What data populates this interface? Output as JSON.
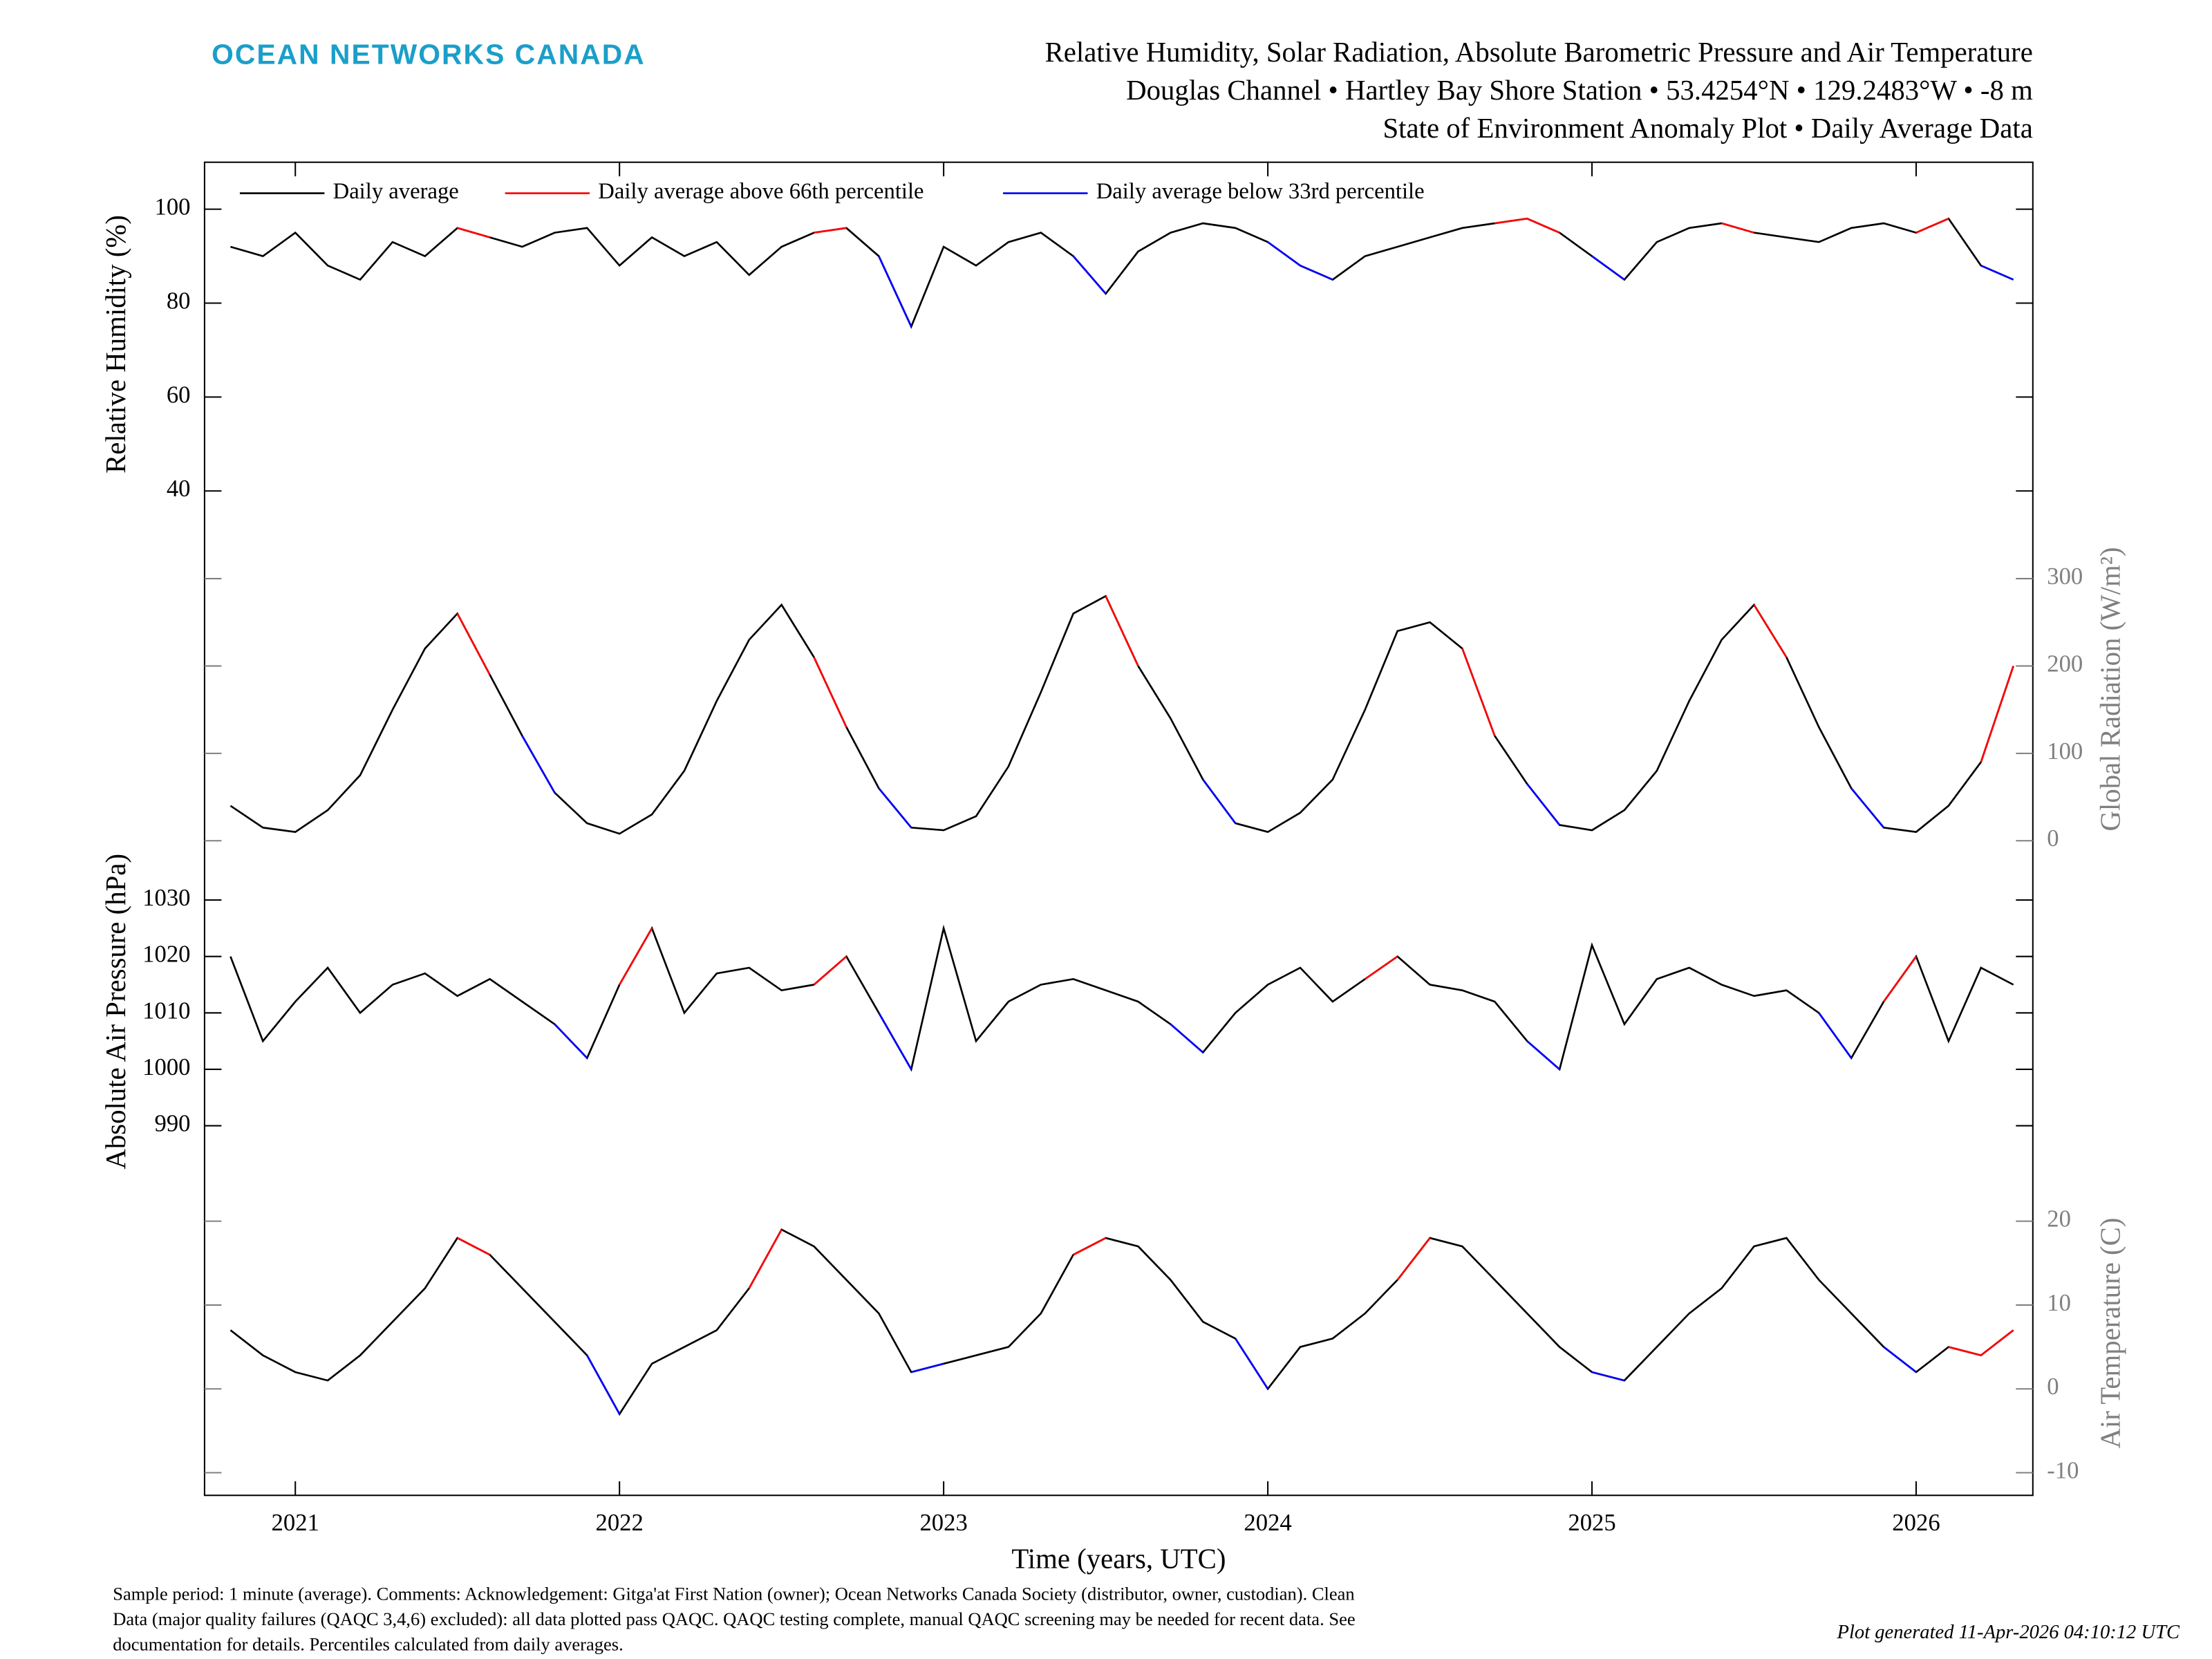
{
  "chart_data": {
    "type": "line",
    "logo": "OCEAN NETWORKS CANADA",
    "title": [
      "Relative Humidity, Solar Radiation, Absolute Barometric Pressure and Air Temperature",
      "Douglas Channel • Hartley Bay Shore Station • 53.4254°N • 129.2483°W • -8 m",
      "State of Environment Anomaly Plot • Daily Average Data"
    ],
    "xlabel": "Time (years, UTC)",
    "xlim": [
      2020.72,
      2026.36
    ],
    "xticks": [
      2021,
      2022,
      2023,
      2024,
      2025,
      2026
    ],
    "x": [
      2020.8,
      2020.9,
      2021.0,
      2021.1,
      2021.2,
      2021.3,
      2021.4,
      2021.5,
      2021.6,
      2021.7,
      2021.8,
      2021.9,
      2022.0,
      2022.1,
      2022.2,
      2022.3,
      2022.4,
      2022.5,
      2022.6,
      2022.7,
      2022.8,
      2022.9,
      2023.0,
      2023.1,
      2023.2,
      2023.3,
      2023.4,
      2023.5,
      2023.6,
      2023.7,
      2023.8,
      2023.9,
      2024.0,
      2024.1,
      2024.2,
      2024.3,
      2024.4,
      2024.5,
      2024.6,
      2024.7,
      2024.8,
      2024.9,
      2025.0,
      2025.1,
      2025.2,
      2025.3,
      2025.4,
      2025.5,
      2025.6,
      2025.7,
      2025.8,
      2025.9,
      2026.0,
      2026.1,
      2026.2,
      2026.3
    ],
    "legend": [
      {
        "name": "Daily average",
        "color": "#000000"
      },
      {
        "name": "Daily average above 66th percentile",
        "color": "#ff0000"
      },
      {
        "name": "Daily average below 33rd percentile",
        "color": "#0000ff"
      }
    ],
    "panels": [
      {
        "ylabel": "Relative Humidity (%)",
        "yaxis": "left",
        "ylim": [
          32.5,
          110
        ],
        "yticks": [
          40,
          60,
          80,
          100
        ],
        "series": [
          {
            "values": [
              92,
              90,
              95,
              88,
              85,
              93,
              90,
              96,
              94,
              92,
              95,
              96,
              88,
              94,
              90,
              93,
              86,
              92,
              95,
              96,
              90,
              75,
              92,
              88,
              93,
              95,
              90,
              82,
              91,
              95,
              97,
              96,
              93,
              88,
              85,
              90,
              92,
              94,
              96,
              97,
              98,
              95,
              90,
              85,
              93,
              96,
              97,
              95,
              94,
              93,
              96,
              97,
              95,
              98,
              88,
              85
            ]
          },
          {
            "values": [
              null,
              null,
              null,
              null,
              null,
              null,
              null,
              96,
              94,
              null,
              null,
              null,
              null,
              null,
              null,
              null,
              null,
              null,
              95,
              96,
              null,
              null,
              null,
              null,
              null,
              null,
              null,
              null,
              null,
              null,
              null,
              null,
              null,
              null,
              null,
              null,
              null,
              null,
              null,
              97,
              98,
              95,
              null,
              null,
              null,
              null,
              97,
              95,
              null,
              null,
              null,
              null,
              95,
              98,
              null,
              null
            ]
          },
          {
            "values": [
              null,
              null,
              null,
              null,
              null,
              null,
              null,
              null,
              null,
              null,
              null,
              null,
              null,
              null,
              null,
              null,
              null,
              null,
              null,
              null,
              90,
              75,
              null,
              null,
              null,
              null,
              90,
              82,
              null,
              null,
              null,
              null,
              93,
              88,
              85,
              null,
              null,
              null,
              null,
              null,
              null,
              null,
              90,
              85,
              null,
              null,
              null,
              null,
              null,
              null,
              null,
              null,
              null,
              null,
              88,
              85
            ]
          }
        ]
      },
      {
        "ylabel": "Global Radiation (W/m²)",
        "yaxis": "right",
        "ylim": [
          -13,
          360
        ],
        "yticks": [
          0,
          100,
          200,
          300
        ],
        "series": [
          {
            "values": [
              40,
              15,
              10,
              35,
              75,
              150,
              220,
              260,
              190,
              120,
              55,
              20,
              8,
              30,
              80,
              160,
              230,
              270,
              210,
              130,
              60,
              15,
              12,
              28,
              85,
              170,
              260,
              280,
              200,
              140,
              70,
              20,
              10,
              32,
              70,
              150,
              240,
              250,
              220,
              120,
              65,
              18,
              12,
              35,
              80,
              160,
              230,
              270,
              210,
              130,
              60,
              15,
              10,
              40,
              90,
              200
            ]
          },
          {
            "values": [
              null,
              null,
              null,
              null,
              null,
              null,
              null,
              260,
              190,
              null,
              null,
              null,
              null,
              null,
              null,
              null,
              null,
              null,
              210,
              130,
              null,
              null,
              null,
              null,
              null,
              null,
              null,
              280,
              200,
              null,
              null,
              null,
              null,
              null,
              null,
              null,
              null,
              null,
              220,
              120,
              null,
              null,
              null,
              null,
              null,
              null,
              null,
              270,
              210,
              null,
              null,
              null,
              null,
              null,
              90,
              200
            ]
          },
          {
            "values": [
              null,
              null,
              null,
              null,
              null,
              null,
              null,
              null,
              null,
              120,
              55,
              null,
              null,
              null,
              null,
              null,
              null,
              null,
              null,
              null,
              60,
              15,
              null,
              null,
              null,
              null,
              null,
              null,
              null,
              null,
              70,
              20,
              null,
              null,
              null,
              null,
              null,
              null,
              null,
              null,
              65,
              18,
              null,
              null,
              null,
              null,
              null,
              null,
              null,
              null,
              60,
              15,
              null,
              null,
              null,
              null
            ]
          }
        ]
      },
      {
        "ylabel": "Absolute Air Pressure (hPa)",
        "yaxis": "left",
        "ylim": [
          982,
          1038.5
        ],
        "yticks": [
          990,
          1000,
          1010,
          1020,
          1030
        ],
        "series": [
          {
            "values": [
              1020,
              1005,
              1012,
              1018,
              1010,
              1015,
              1017,
              1013,
              1016,
              1012,
              1008,
              1002,
              1015,
              1025,
              1010,
              1017,
              1018,
              1014,
              1015,
              1020,
              1010,
              1000,
              1025,
              1005,
              1012,
              1015,
              1016,
              1014,
              1012,
              1008,
              1003,
              1010,
              1015,
              1018,
              1012,
              1016,
              1020,
              1015,
              1014,
              1012,
              1005,
              1000,
              1022,
              1008,
              1016,
              1018,
              1015,
              1013,
              1014,
              1010,
              1002,
              1012,
              1020,
              1005,
              1018,
              1015
            ]
          },
          {
            "values": [
              null,
              null,
              null,
              null,
              null,
              null,
              null,
              null,
              null,
              null,
              null,
              null,
              1015,
              1025,
              null,
              null,
              null,
              null,
              1015,
              1020,
              null,
              null,
              null,
              null,
              null,
              null,
              null,
              null,
              null,
              null,
              null,
              null,
              null,
              null,
              null,
              1016,
              1020,
              null,
              null,
              null,
              null,
              null,
              null,
              null,
              null,
              null,
              null,
              null,
              null,
              null,
              null,
              1012,
              1020,
              null,
              null,
              null
            ]
          },
          {
            "values": [
              null,
              null,
              null,
              null,
              null,
              null,
              null,
              null,
              null,
              null,
              1008,
              1002,
              null,
              null,
              null,
              null,
              null,
              null,
              null,
              null,
              1010,
              1000,
              null,
              null,
              null,
              null,
              null,
              null,
              null,
              1008,
              1003,
              null,
              null,
              null,
              null,
              null,
              null,
              null,
              null,
              null,
              1005,
              1000,
              null,
              null,
              null,
              null,
              null,
              null,
              null,
              1010,
              1002,
              null,
              null,
              null,
              null,
              null
            ]
          }
        ]
      },
      {
        "ylabel": "Air Temperature (C)",
        "yaxis": "right",
        "ylim": [
          -12.7,
          26
        ],
        "yticks": [
          -10,
          0,
          10,
          20
        ],
        "series": [
          {
            "values": [
              7,
              4,
              2,
              1,
              4,
              8,
              12,
              18,
              16,
              12,
              8,
              4,
              -3,
              3,
              5,
              7,
              12,
              19,
              17,
              13,
              9,
              2,
              3,
              4,
              5,
              9,
              16,
              18,
              17,
              13,
              8,
              6,
              0,
              5,
              6,
              9,
              13,
              18,
              17,
              13,
              9,
              5,
              2,
              1,
              5,
              9,
              12,
              17,
              18,
              13,
              9,
              5,
              2,
              5,
              4,
              7
            ]
          },
          {
            "values": [
              null,
              null,
              null,
              null,
              null,
              null,
              null,
              18,
              16,
              null,
              null,
              null,
              null,
              null,
              null,
              null,
              12,
              19,
              null,
              null,
              null,
              null,
              null,
              null,
              null,
              null,
              16,
              18,
              null,
              null,
              null,
              null,
              null,
              null,
              null,
              null,
              13,
              18,
              null,
              null,
              null,
              null,
              null,
              null,
              null,
              null,
              null,
              null,
              null,
              null,
              null,
              null,
              null,
              5,
              4,
              7
            ]
          },
          {
            "values": [
              null,
              null,
              null,
              null,
              null,
              null,
              null,
              null,
              null,
              null,
              null,
              4,
              -3,
              null,
              null,
              null,
              null,
              null,
              null,
              null,
              null,
              2,
              3,
              null,
              null,
              null,
              null,
              null,
              null,
              null,
              null,
              6,
              0,
              null,
              null,
              null,
              null,
              null,
              null,
              null,
              null,
              null,
              2,
              1,
              null,
              null,
              null,
              null,
              null,
              null,
              null,
              5,
              2,
              null,
              null,
              null
            ]
          }
        ]
      }
    ],
    "footnote": [
      "Sample period: 1 minute (average). Comments: Acknowledgement: Gitga'at First Nation (owner); Ocean Networks Canada Society (distributor, owner, custodian). Clean",
      "Data (major quality failures (QAQC 3,4,6) excluded): all data plotted pass QAQC. QAQC testing complete, manual QAQC screening may be needed for recent data. See",
      "documentation for details. Percentiles calculated from daily averages."
    ],
    "generated": "Plot generated 11-Apr-2026 04:10:12 UTC"
  }
}
